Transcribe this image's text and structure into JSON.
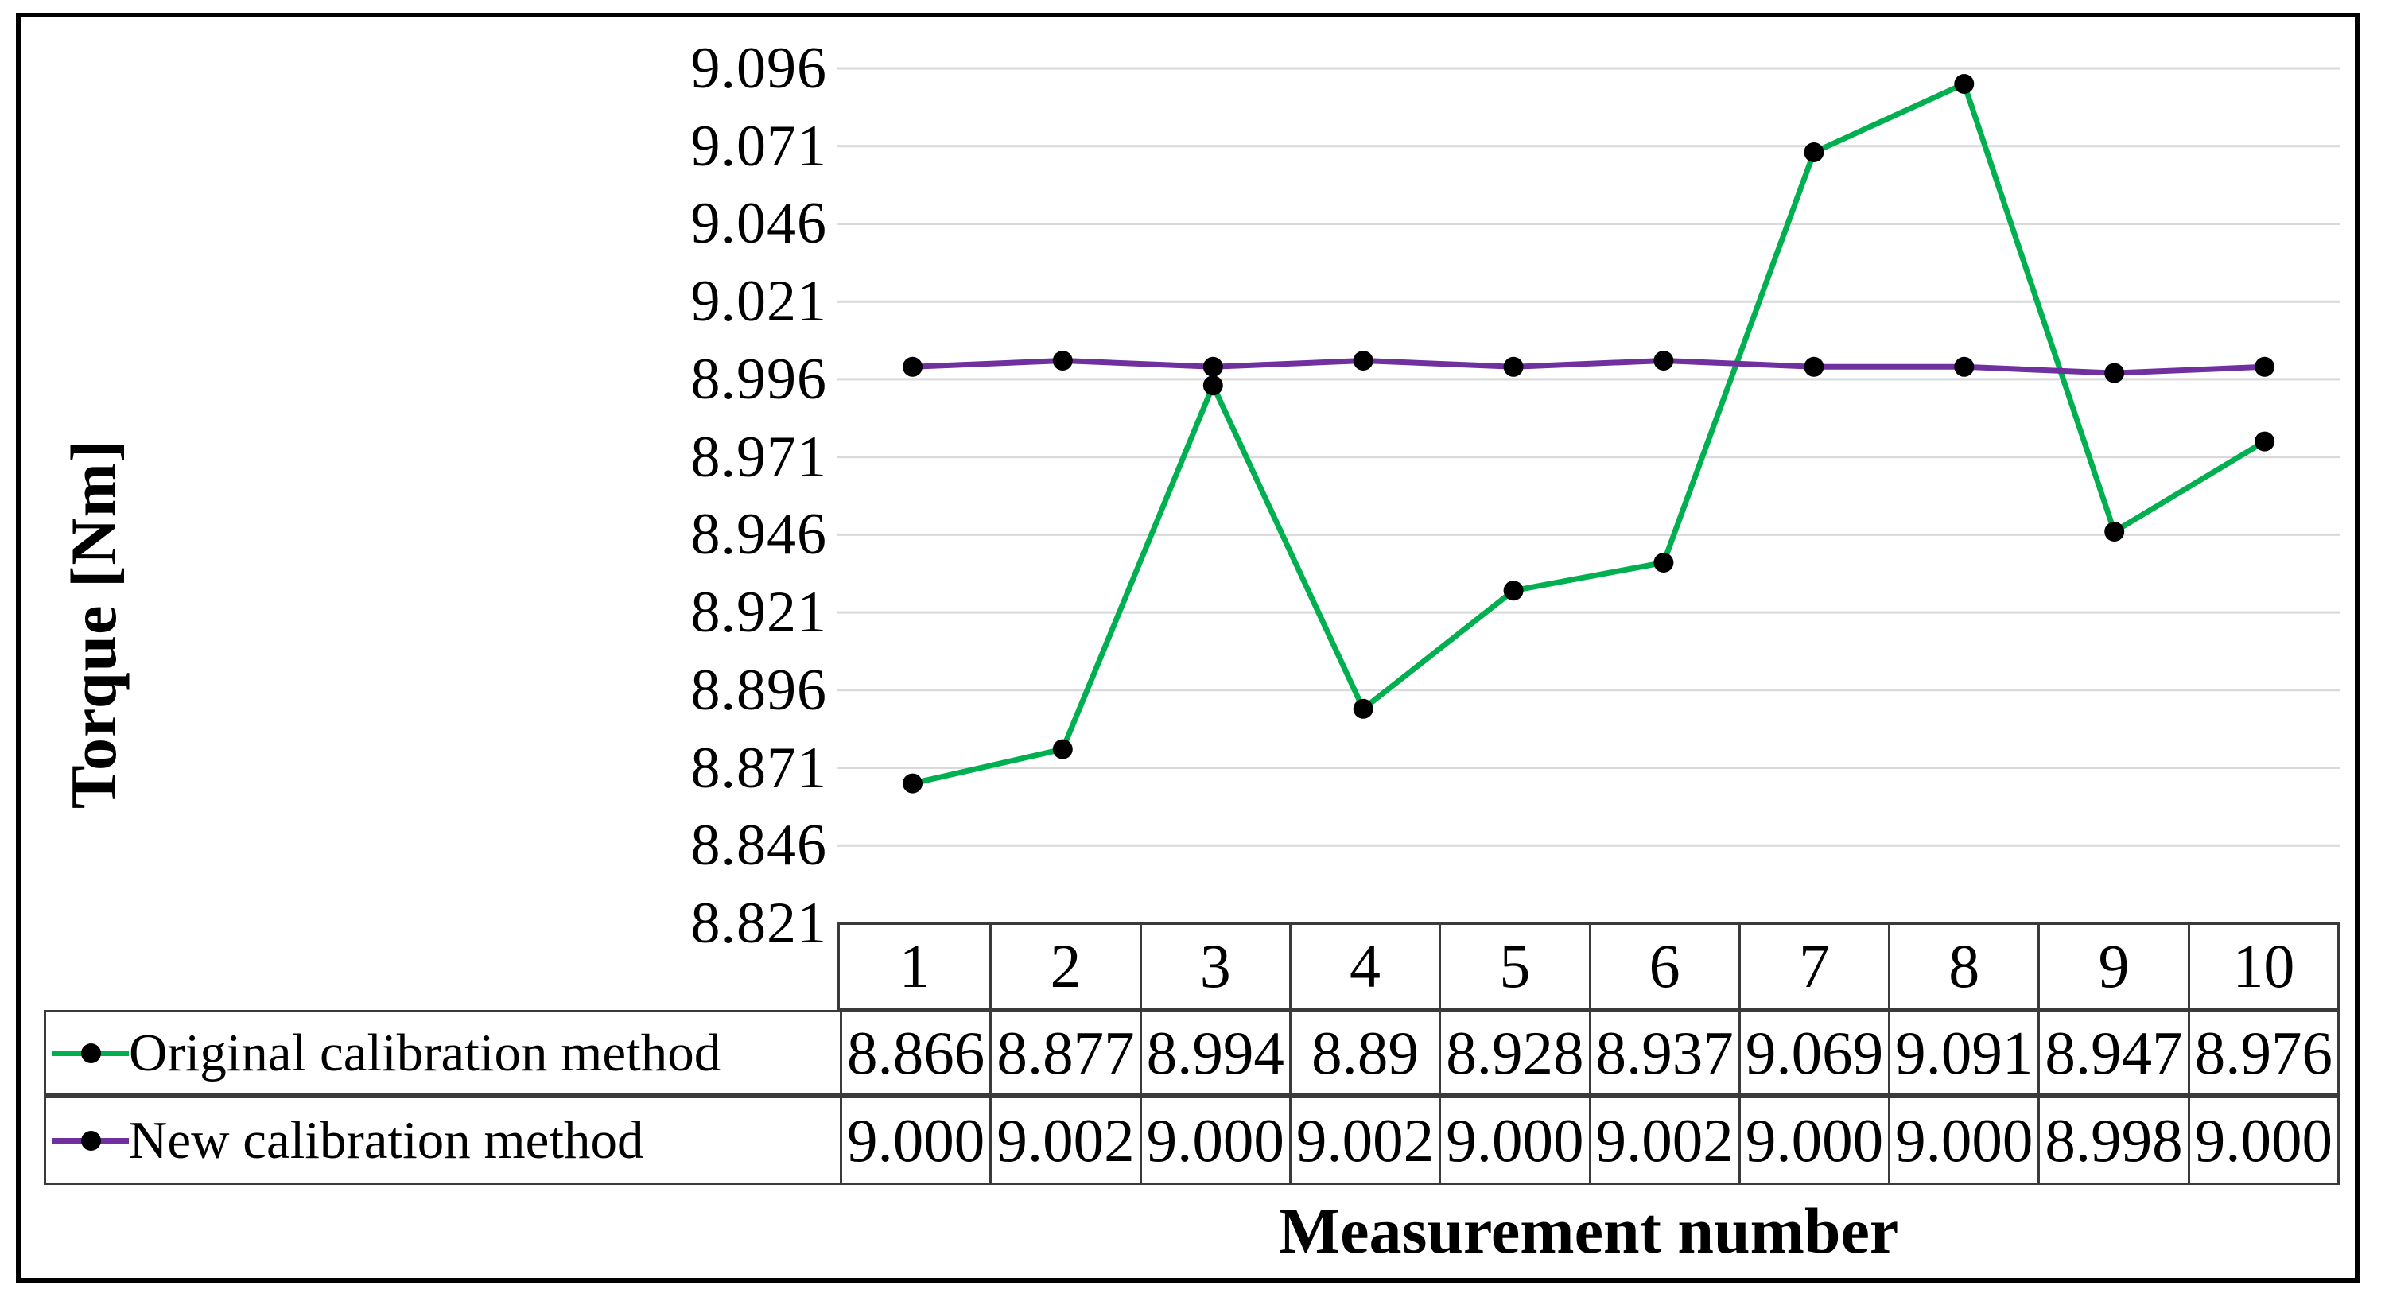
{
  "chart_data": {
    "type": "line",
    "title": "",
    "xlabel": "Measurement number",
    "ylabel": "Torque [Nm]",
    "categories": [
      "1",
      "2",
      "3",
      "4",
      "5",
      "6",
      "7",
      "8",
      "9",
      "10"
    ],
    "yticks": [
      "9.096",
      "9.071",
      "9.046",
      "9.021",
      "8.996",
      "8.971",
      "8.946",
      "8.921",
      "8.896",
      "8.871",
      "8.846",
      "8.821"
    ],
    "ymin": 8.821,
    "ymax": 9.096,
    "ystep": 0.025,
    "grid": true,
    "gridline_color": "#D9D9D9",
    "marker_color": "#000000",
    "legend_position": "table-left",
    "series": [
      {
        "name": "Original calibration method",
        "color": "#00B050",
        "values": [
          8.866,
          8.877,
          8.994,
          8.89,
          8.928,
          8.937,
          9.069,
          9.091,
          8.947,
          8.976
        ],
        "display": [
          "8.866",
          "8.877",
          "8.994",
          "8.89",
          "8.928",
          "8.937",
          "9.069",
          "9.091",
          "8.947",
          "8.976"
        ]
      },
      {
        "name": "New calibration method",
        "color": "#7030A0",
        "values": [
          9.0,
          9.002,
          9.0,
          9.002,
          9.0,
          9.002,
          9.0,
          9.0,
          8.998,
          9.0
        ],
        "display": [
          "9.000",
          "9.002",
          "9.000",
          "9.002",
          "9.000",
          "9.002",
          "9.000",
          "9.000",
          "8.998",
          "9.000"
        ]
      }
    ]
  }
}
